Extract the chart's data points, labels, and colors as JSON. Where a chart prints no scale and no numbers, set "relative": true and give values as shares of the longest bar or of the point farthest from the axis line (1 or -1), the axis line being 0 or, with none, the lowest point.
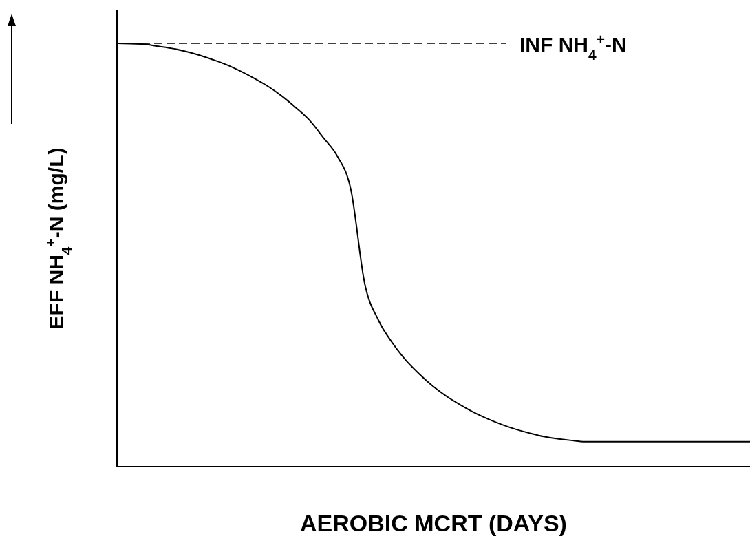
{
  "chart_data": {
    "type": "line",
    "relative": true,
    "xlabel": "AEROBIC MCRT (DAYS)",
    "ylabel": "EFF NH$_{4}$$^{+}$-N (mg/L)",
    "categories": [
      null,
      null,
      null,
      null,
      null,
      null,
      null,
      null,
      null,
      null,
      null,
      null,
      null,
      null,
      null,
      null,
      null,
      null,
      null,
      null,
      null,
      null,
      null,
      null,
      null,
      null,
      null,
      null,
      null,
      null,
      null,
      null,
      null,
      null,
      null,
      null,
      null,
      null,
      null,
      null,
      null,
      null,
      null,
      null,
      null,
      null,
      null
    ],
    "series": [
      {
        "color": "#000000",
        "values": [
          1.0,
          0.999,
          0.998,
          0.993,
          0.988,
          0.981,
          0.972,
          0.961,
          0.949,
          0.934,
          0.917,
          0.898,
          0.875,
          0.848,
          0.818,
          0.777,
          0.734,
          0.654,
          0.433,
          0.346,
          0.293,
          0.251,
          0.218,
          0.189,
          0.165,
          0.145,
          0.127,
          0.112,
          0.099,
          0.088,
          0.079,
          0.071,
          0.066,
          0.062,
          0.059,
          0.059,
          0.059,
          0.059,
          0.059,
          0.059,
          0.059,
          0.059,
          0.059,
          0.059,
          0.059,
          0.059,
          0.059
        ]
      }
    ],
    "ref_lines": [
      {
        "axis": "y",
        "value": 1.0,
        "label": "INF NH$_{4}$$^{+}$-N",
        "color": "#000000",
        "line_style": "dashed"
      }
    ],
    "marker": "none",
    "line_style": "solid"
  }
}
